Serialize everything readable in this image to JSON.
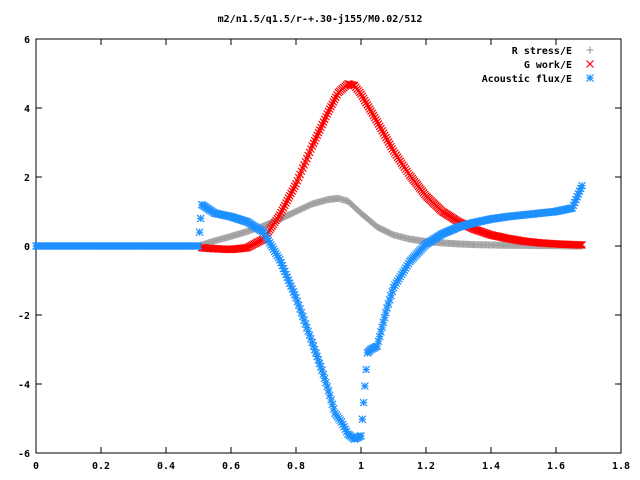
{
  "chart_data": {
    "type": "scatter",
    "title": "m2/n1.5/q1.5/r-+.30-j155/M0.02/512",
    "xlabel": "",
    "ylabel": "",
    "xlim": [
      0,
      1.8
    ],
    "ylim": [
      -6,
      6
    ],
    "x_ticks": [
      "0",
      "0.2",
      "0.4",
      "0.6",
      "0.8",
      "1",
      "1.2",
      "1.4",
      "1.6",
      "1.8"
    ],
    "y_ticks": [
      "6",
      "4",
      "2",
      "0",
      "-2",
      "-4",
      "-6"
    ],
    "grid": false,
    "legend_position": "top-right",
    "series": [
      {
        "name": "R stress/E",
        "marker": "plus",
        "color": "#a0a0a0",
        "x": [
          0.0,
          0.1,
          0.2,
          0.3,
          0.4,
          0.5,
          0.55,
          0.6,
          0.65,
          0.7,
          0.75,
          0.8,
          0.85,
          0.9,
          0.93,
          0.96,
          1.0,
          1.05,
          1.1,
          1.15,
          1.2,
          1.25,
          1.3,
          1.35,
          1.4,
          1.45,
          1.5,
          1.55,
          1.6,
          1.65,
          1.68
        ],
        "y": [
          0.0,
          0.0,
          0.0,
          0.0,
          0.0,
          0.0,
          0.15,
          0.28,
          0.42,
          0.58,
          0.78,
          1.0,
          1.22,
          1.35,
          1.38,
          1.3,
          0.95,
          0.55,
          0.32,
          0.2,
          0.13,
          0.09,
          0.06,
          0.04,
          0.03,
          0.02,
          0.02,
          0.01,
          0.01,
          0.0,
          0.0
        ]
      },
      {
        "name": "G work/E",
        "marker": "cross",
        "color": "#ff0000",
        "x": [
          0.51,
          0.55,
          0.6,
          0.65,
          0.7,
          0.75,
          0.8,
          0.85,
          0.9,
          0.93,
          0.96,
          0.98,
          1.0,
          1.05,
          1.1,
          1.15,
          1.2,
          1.25,
          1.3,
          1.35,
          1.4,
          1.45,
          1.5,
          1.55,
          1.6,
          1.65,
          1.68
        ],
        "y": [
          -0.05,
          -0.08,
          -0.1,
          -0.05,
          0.2,
          0.9,
          1.8,
          2.9,
          3.9,
          4.45,
          4.7,
          4.65,
          4.4,
          3.6,
          2.75,
          2.05,
          1.45,
          1.0,
          0.7,
          0.48,
          0.32,
          0.22,
          0.14,
          0.09,
          0.06,
          0.04,
          0.03
        ]
      },
      {
        "name": "Acoustic flux/E",
        "marker": "star",
        "color": "#1e90ff",
        "x": [
          0.0,
          0.1,
          0.2,
          0.3,
          0.4,
          0.5,
          0.51,
          0.55,
          0.6,
          0.65,
          0.7,
          0.75,
          0.8,
          0.85,
          0.88,
          0.9,
          0.92,
          0.94,
          0.96,
          0.98,
          1.0,
          1.02,
          1.03,
          1.05,
          1.08,
          1.1,
          1.15,
          1.2,
          1.25,
          1.3,
          1.35,
          1.4,
          1.45,
          1.5,
          1.55,
          1.6,
          1.65,
          1.68
        ],
        "y": [
          0.0,
          0.0,
          0.0,
          0.0,
          0.0,
          0.0,
          1.2,
          0.95,
          0.85,
          0.7,
          0.4,
          -0.4,
          -1.5,
          -2.8,
          -3.6,
          -4.2,
          -4.85,
          -5.1,
          -5.45,
          -5.6,
          -5.5,
          -3.1,
          -3.0,
          -2.9,
          -1.8,
          -1.2,
          -0.45,
          0.05,
          0.35,
          0.55,
          0.68,
          0.78,
          0.85,
          0.9,
          0.95,
          1.0,
          1.1,
          1.75
        ]
      }
    ]
  }
}
